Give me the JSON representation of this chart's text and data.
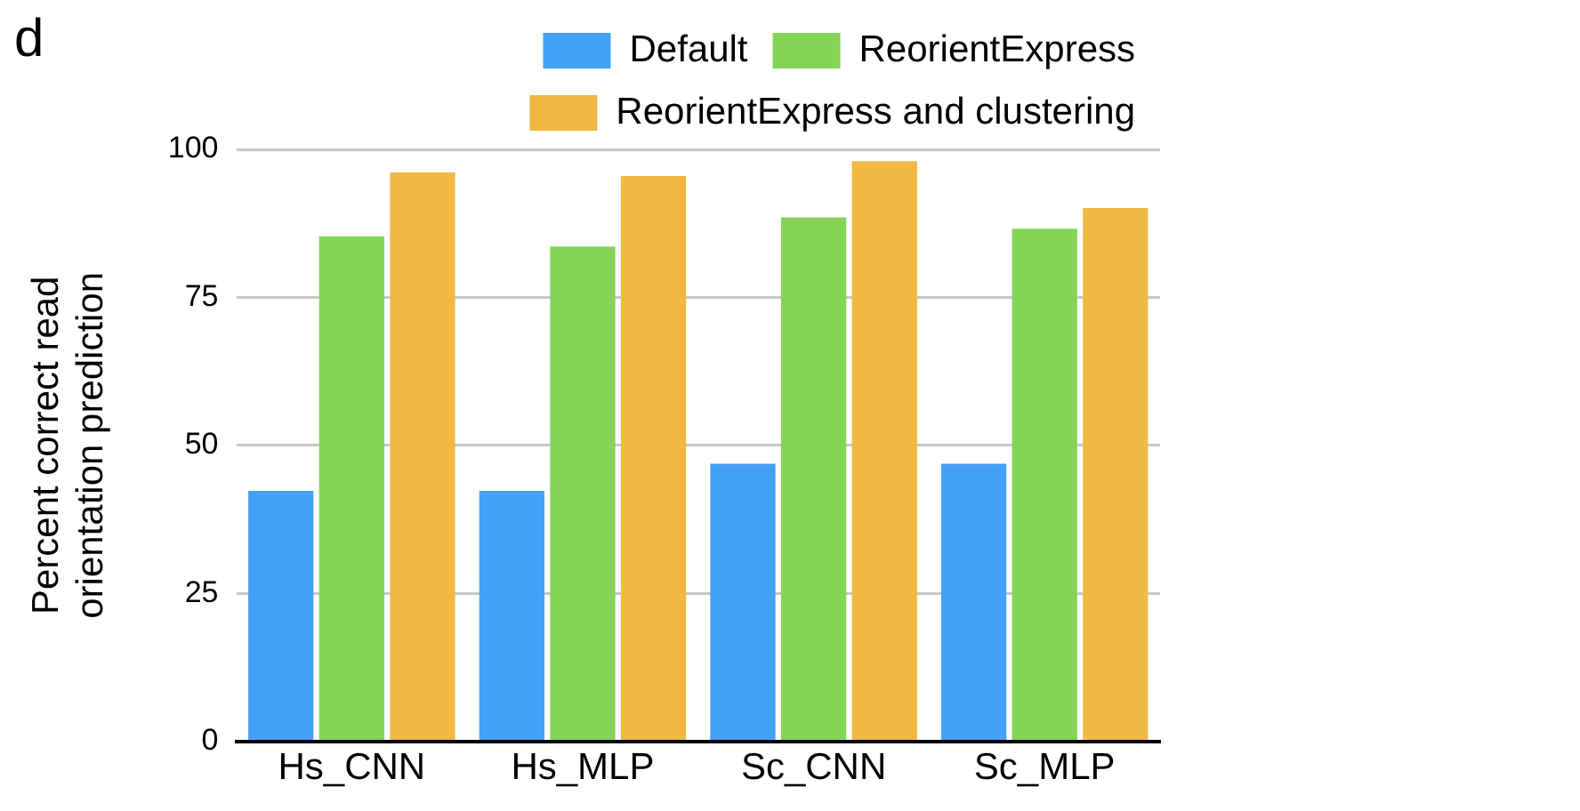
{
  "chart_data": {
    "type": "bar",
    "ylabel": "Percent correct read orientation prediction",
    "annotations": [
      "d"
    ],
    "categories": [
      "Hs_CNN",
      "Hs_MLP",
      "Sc_CNN",
      "Sc_MLP"
    ],
    "series": [
      {
        "name": "Default",
        "color": "#43a1f7",
        "values": [
          42.3,
          42.3,
          46.9,
          46.9
        ]
      },
      {
        "name": "ReorientExpress",
        "color": "#83d457",
        "values": [
          85.3,
          83.6,
          88.5,
          86.6
        ]
      },
      {
        "name": "ReorientExpress and clustering",
        "color": "#efb942",
        "values": [
          96.1,
          95.5,
          98.0,
          90.1
        ]
      }
    ],
    "ylim": [
      0,
      100
    ],
    "yticks": [
      0,
      25,
      50,
      75,
      100
    ],
    "grid": "y",
    "legend": "top"
  }
}
